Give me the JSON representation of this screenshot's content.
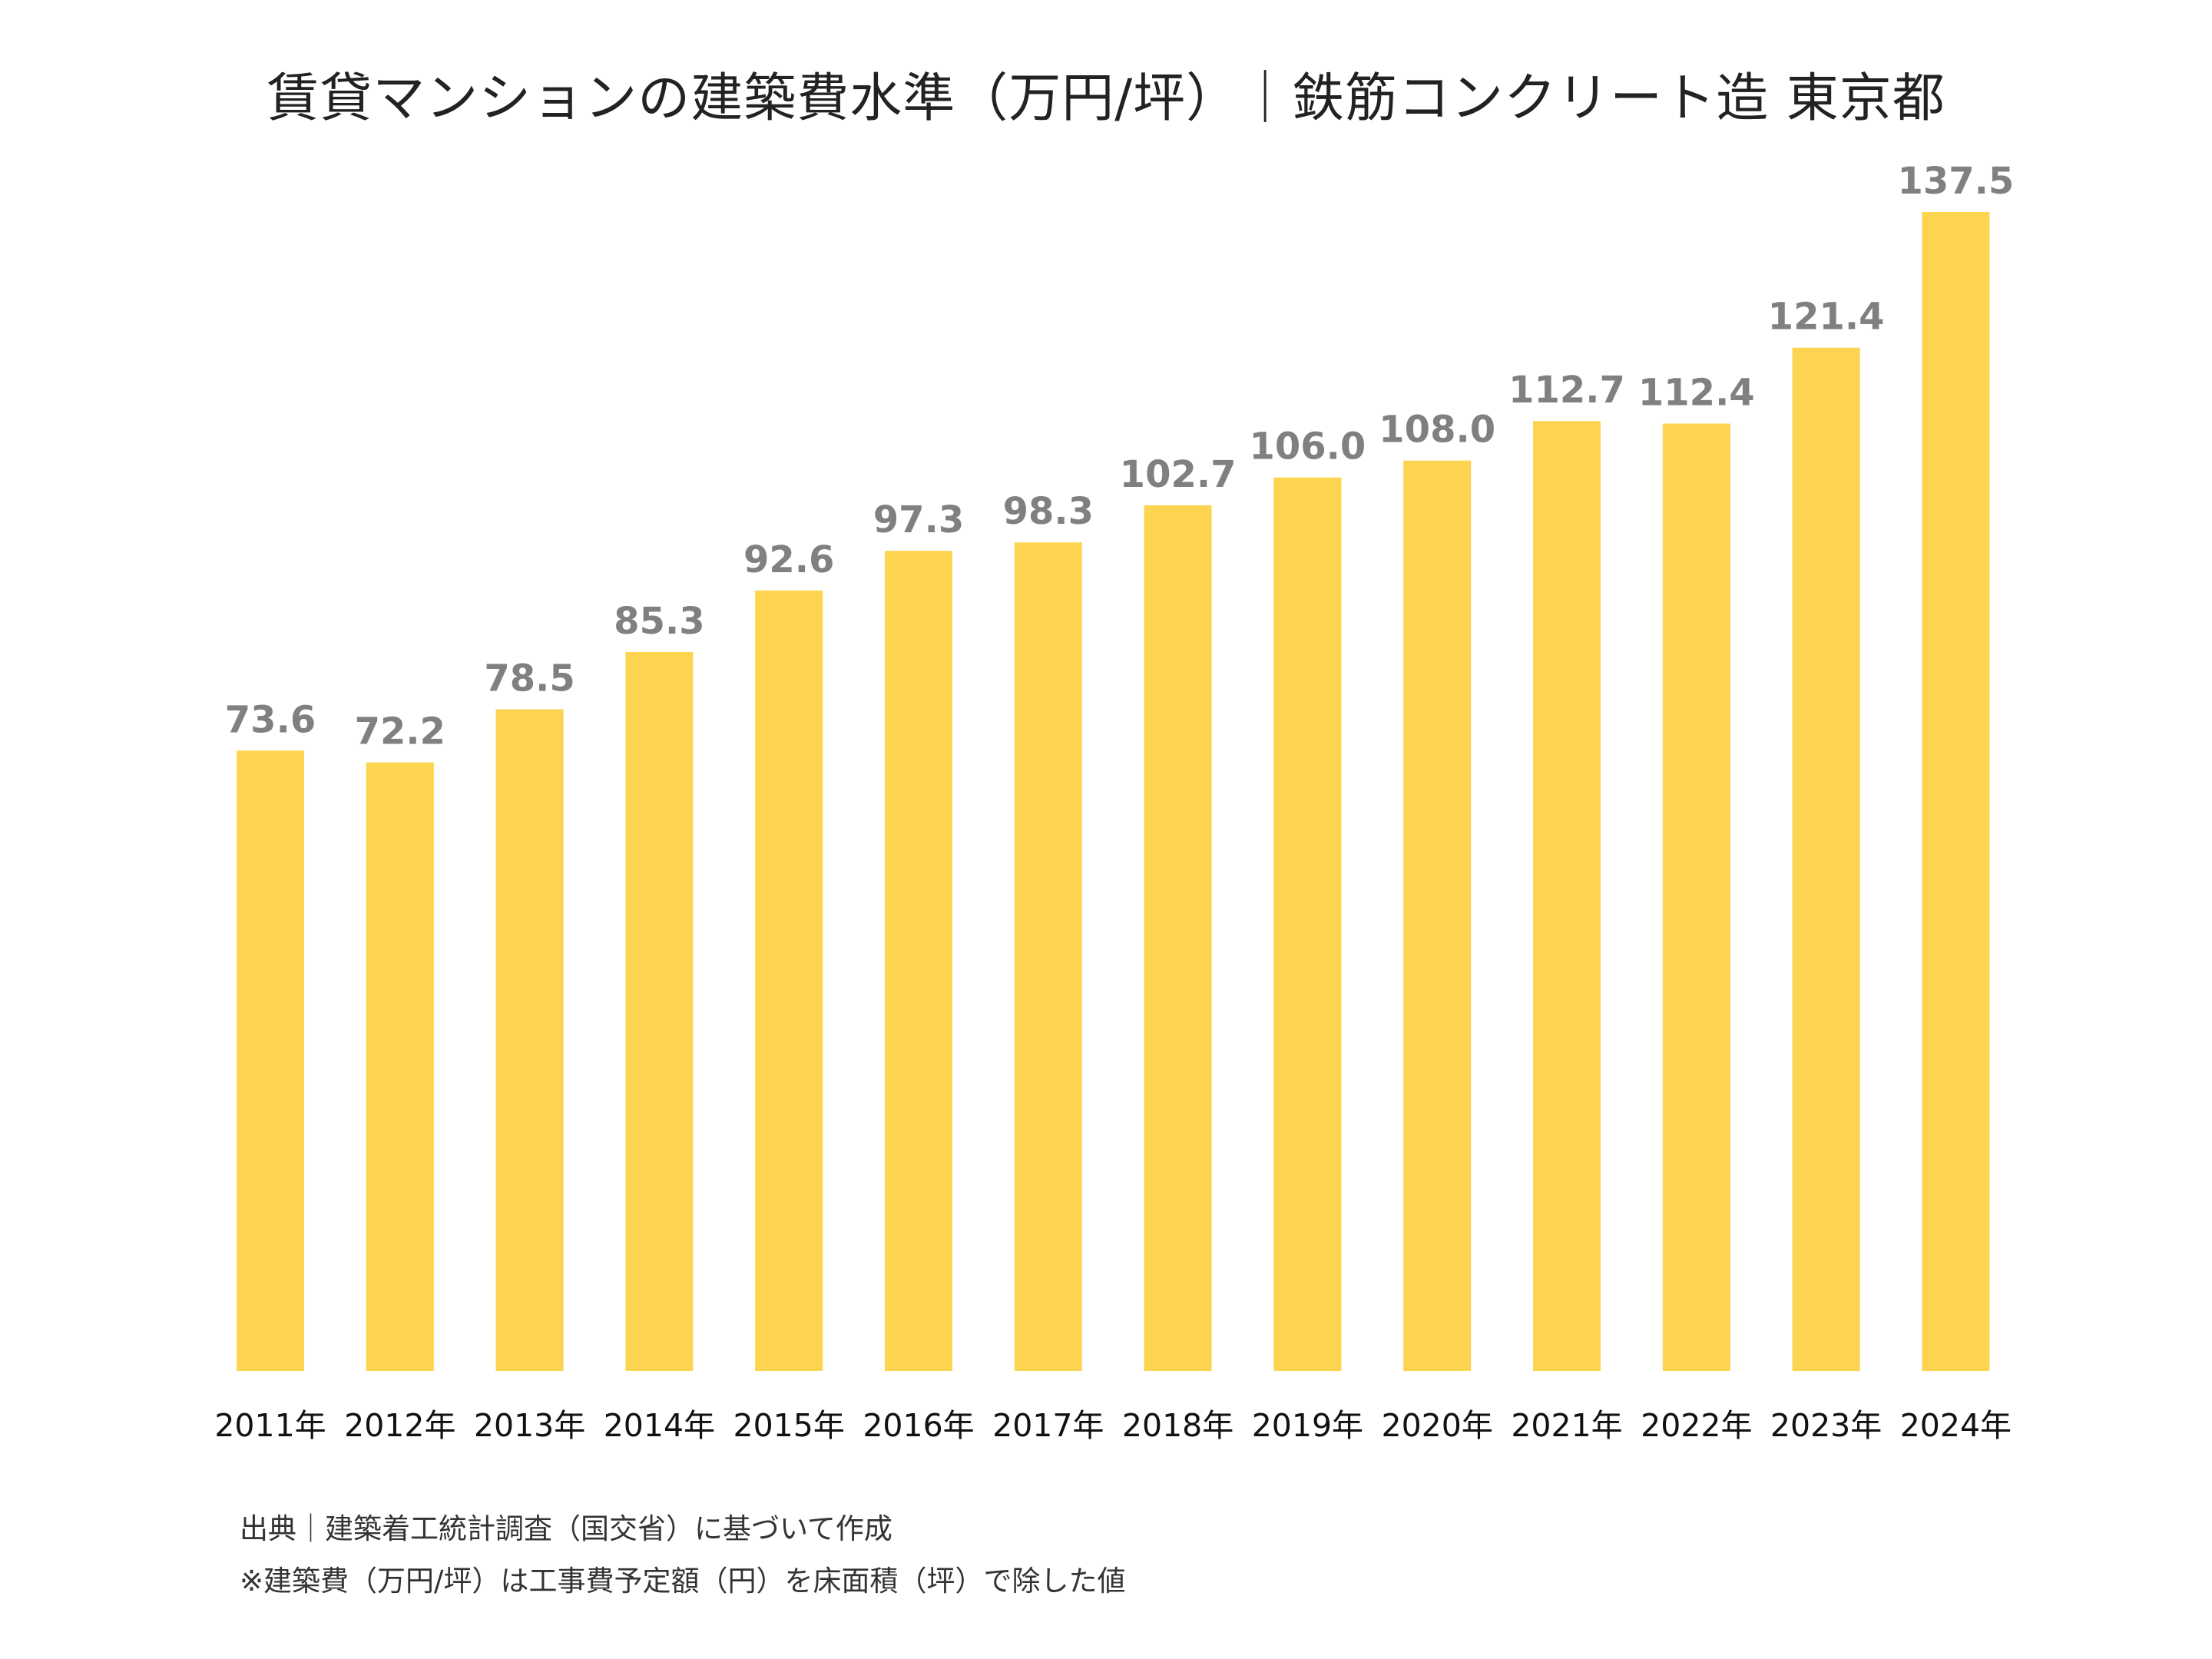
{
  "chart_data": {
    "type": "bar",
    "title": "賃貸マンションの建築費水準（万円/坪）｜鉄筋コンクリート造 東京都",
    "categories": [
      "2011年",
      "2012年",
      "2013年",
      "2014年",
      "2015年",
      "2016年",
      "2017年",
      "2018年",
      "2019年",
      "2020年",
      "2021年",
      "2022年",
      "2023年",
      "2024年"
    ],
    "values": [
      73.6,
      72.2,
      78.5,
      85.3,
      92.6,
      97.3,
      98.3,
      102.7,
      106.0,
      108.0,
      112.7,
      112.4,
      121.4,
      137.5
    ],
    "value_labels": [
      "73.6",
      "72.2",
      "78.5",
      "85.3",
      "92.6",
      "97.3",
      "98.3",
      "102.7",
      "106.0",
      "108.0",
      "112.7",
      "112.4",
      "121.4",
      "137.5"
    ],
    "xlabel": "",
    "ylabel": "",
    "ylim": [
      0,
      137.5
    ],
    "grid": false,
    "bar_color": "#FCD44F",
    "label_color": "#808080"
  },
  "notes": {
    "source": "出典｜建築着工統計調査（国交省）に基づいて作成",
    "calc": "※建築費（万円/坪）は工事費予定額（円）を床面積（坪）で除した値"
  }
}
